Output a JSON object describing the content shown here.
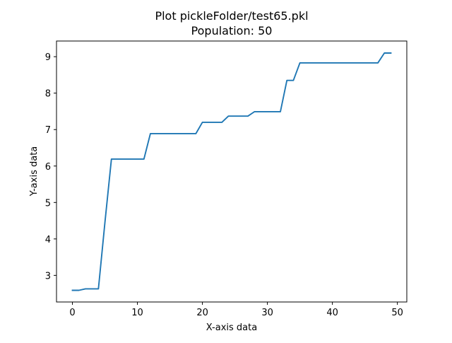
{
  "chart_data": {
    "type": "line",
    "title": "Plot pickleFolder/test65.pkl",
    "subtitle": "Population: 50",
    "xlabel": "X-axis data",
    "ylabel": "Y-axis data",
    "xlim": [
      -2.45,
      51.45
    ],
    "ylim": [
      2.27,
      9.43
    ],
    "xticks": [
      0,
      10,
      20,
      30,
      40,
      50
    ],
    "yticks": [
      3,
      4,
      5,
      6,
      7,
      8,
      9
    ],
    "grid": false,
    "series": [
      {
        "color": "#1f77b4",
        "x": [
          0,
          1,
          2,
          3,
          4,
          5,
          6,
          7,
          8,
          9,
          10,
          11,
          12,
          13,
          14,
          15,
          16,
          17,
          18,
          19,
          20,
          21,
          22,
          23,
          24,
          25,
          26,
          27,
          28,
          29,
          30,
          31,
          32,
          33,
          34,
          35,
          36,
          37,
          38,
          39,
          40,
          41,
          42,
          43,
          44,
          45,
          46,
          47,
          48,
          49
        ],
        "y": [
          2.59,
          2.59,
          2.63,
          2.63,
          2.63,
          4.45,
          6.19,
          6.19,
          6.19,
          6.19,
          6.19,
          6.19,
          6.89,
          6.89,
          6.89,
          6.89,
          6.89,
          6.89,
          6.89,
          6.89,
          7.2,
          7.2,
          7.2,
          7.2,
          7.37,
          7.37,
          7.37,
          7.37,
          7.49,
          7.49,
          7.49,
          7.49,
          7.49,
          8.35,
          8.35,
          8.83,
          8.83,
          8.83,
          8.83,
          8.83,
          8.83,
          8.83,
          8.83,
          8.83,
          8.83,
          8.83,
          8.83,
          8.83,
          9.1,
          9.1
        ]
      }
    ]
  }
}
